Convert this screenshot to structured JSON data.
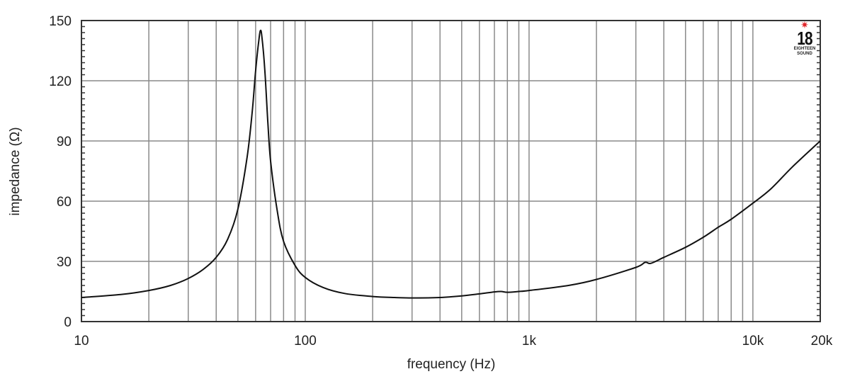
{
  "chart_data": {
    "type": "line",
    "title": "",
    "xlabel": "frequency (Hz)",
    "ylabel": "impedance (Ω)",
    "xscale": "log",
    "xlim": [
      10,
      20000
    ],
    "ylim": [
      0,
      150
    ],
    "x_ticks": [
      10,
      100,
      1000,
      10000,
      20000
    ],
    "x_tick_labels": [
      "10",
      "100",
      "1k",
      "10k",
      "20k"
    ],
    "y_ticks": [
      0,
      30,
      60,
      90,
      120,
      150
    ],
    "y_tick_labels": [
      "0",
      "30",
      "60",
      "90",
      "120",
      "150"
    ],
    "grid": true,
    "legend": null,
    "series": [
      {
        "name": "impedance",
        "color": "#111111",
        "x": [
          10,
          15,
          20,
          25,
          30,
          35,
          40,
          45,
          50,
          55,
          58,
          60,
          62,
          63,
          64,
          66,
          68,
          70,
          75,
          80,
          90,
          100,
          120,
          150,
          200,
          250,
          300,
          400,
          500,
          600,
          700,
          750,
          800,
          900,
          1000,
          1500,
          2000,
          3000,
          3300,
          3500,
          4000,
          5000,
          6000,
          7000,
          8000,
          10000,
          12000,
          15000,
          20000
        ],
        "y": [
          12,
          13.5,
          15.5,
          18,
          21.5,
          26,
          32,
          41,
          56,
          82,
          105,
          125,
          140,
          145,
          142,
          125,
          100,
          80,
          55,
          40,
          28,
          22,
          17,
          14,
          12.5,
          12,
          11.8,
          12,
          12.8,
          13.8,
          14.8,
          15,
          14.6,
          15,
          15.5,
          18,
          21,
          27,
          29.5,
          29,
          32,
          37,
          42,
          47,
          51,
          59,
          66,
          77,
          90
        ]
      }
    ]
  },
  "logo": {
    "star": "✷",
    "number": "18",
    "line1": "EIGHTEEN",
    "line2": "SOUND"
  }
}
